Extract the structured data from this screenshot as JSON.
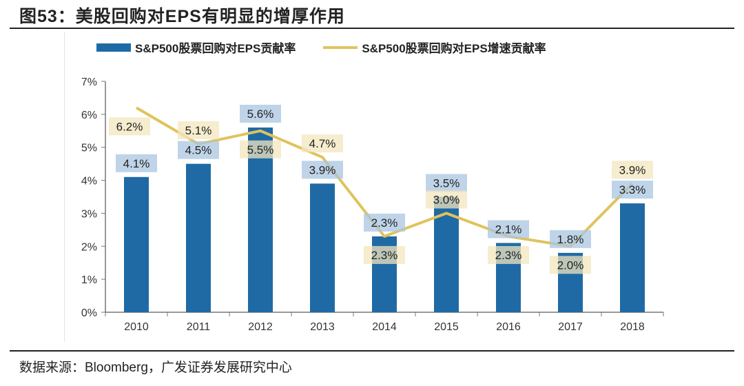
{
  "title": "图53：美股回购对EPS有明显的增厚作用",
  "source": "数据来源：Bloomberg，广发证券发展研究中心",
  "chart_data": {
    "type": "bar+line",
    "categories": [
      "2010",
      "2011",
      "2012",
      "2013",
      "2014",
      "2015",
      "2016",
      "2017",
      "2018"
    ],
    "series": [
      {
        "name": "S&P500股票回购对EPS贡献率",
        "type": "bar",
        "color": "#1f6aa5",
        "label_bg": "#a9c6e0",
        "values": [
          4.1,
          4.5,
          5.6,
          3.9,
          2.3,
          3.5,
          2.1,
          1.8,
          3.3
        ]
      },
      {
        "name": "S&P500股票回购对EPS增速贡献率",
        "type": "line",
        "color": "#e0c35c",
        "label_bg": "#f3e6bd",
        "values": [
          6.2,
          5.1,
          5.5,
          4.7,
          2.3,
          3.0,
          2.3,
          2.0,
          3.9
        ]
      }
    ],
    "ylim": [
      0,
      7
    ],
    "yticks": [
      "0%",
      "1%",
      "2%",
      "3%",
      "4%",
      "5%",
      "6%",
      "7%"
    ],
    "legend": "top",
    "grid": false,
    "data_labels": true
  }
}
